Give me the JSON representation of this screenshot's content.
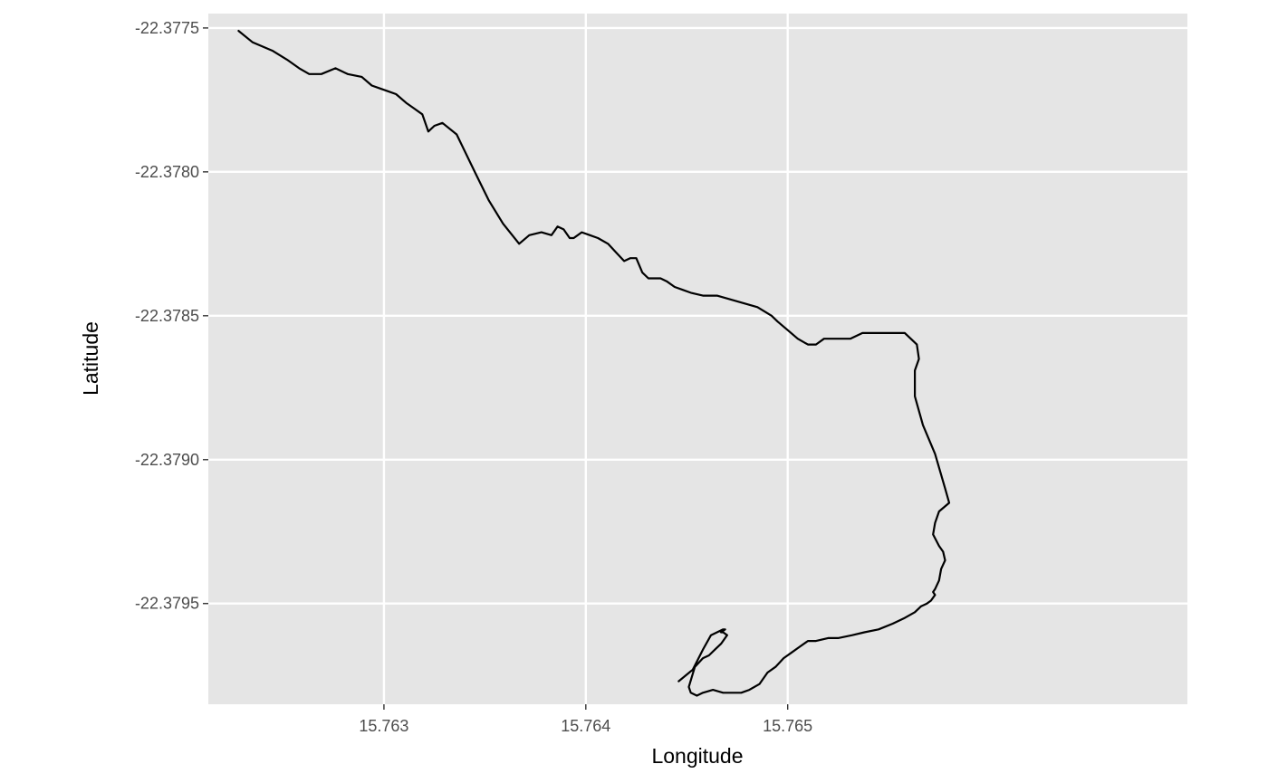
{
  "chart_data": {
    "type": "line",
    "title": "",
    "xlabel": "Longitude",
    "ylabel": "Latitude",
    "xlim": [
      15.76213,
      15.76698
    ],
    "ylim": [
      -22.37985,
      -22.37745
    ],
    "xticks": [
      {
        "value": 15.763,
        "label": "15.763"
      },
      {
        "value": 15.764,
        "label": "15.764"
      },
      {
        "value": 15.765,
        "label": "15.765"
      }
    ],
    "yticks": [
      {
        "value": -22.3775,
        "label": "-22.3775"
      },
      {
        "value": -22.378,
        "label": "-22.3780"
      },
      {
        "value": -22.3785,
        "label": "-22.3785"
      },
      {
        "value": -22.379,
        "label": "-22.3790"
      },
      {
        "value": -22.3795,
        "label": "-22.3795"
      }
    ],
    "grid": true,
    "legend": "none",
    "colors": {
      "panel": "#e5e5e5",
      "grid": "#ffffff",
      "line": "#000000"
    },
    "series": [
      {
        "x": [
          15.76228,
          15.76235,
          15.76245,
          15.76252,
          15.76258,
          15.76263,
          15.76269,
          15.76276,
          15.76282,
          15.76289,
          15.76294,
          15.76298,
          15.76302,
          15.76306,
          15.76311,
          15.76315,
          15.76319,
          15.76322,
          15.76325,
          15.76329,
          15.76336,
          15.76345,
          15.76352,
          15.76359,
          15.76367,
          15.76372,
          15.76378,
          15.76383,
          15.76386,
          15.76389,
          15.76392,
          15.76394,
          15.76398,
          15.76402,
          15.76406,
          15.76411,
          15.76415,
          15.76419,
          15.76422,
          15.76425,
          15.76428,
          15.76431,
          15.76434,
          15.76437,
          15.7644,
          15.76444,
          15.76448,
          15.76452,
          15.76458,
          15.76465,
          15.76475,
          15.76485,
          15.76492,
          15.76495,
          15.765,
          15.76505,
          15.7651,
          15.76514,
          15.76518,
          15.76522,
          15.76526,
          15.76531,
          15.76537,
          15.76545,
          15.76552,
          15.76558,
          15.76561,
          15.76564,
          15.76565,
          15.76563,
          15.76563,
          15.76567,
          15.76573,
          15.76578,
          15.7658,
          15.76575,
          15.76573,
          15.76572,
          15.76575,
          15.76577,
          15.76578,
          15.76576,
          15.76575,
          15.76573,
          15.76572,
          15.76573,
          15.76571,
          15.76569,
          15.76566,
          15.76563,
          15.76558,
          15.76552,
          15.76545,
          15.76538,
          15.76532,
          15.76525,
          15.7652,
          15.76514,
          15.7651,
          15.76506,
          15.76502,
          15.76498,
          15.76494,
          15.7649,
          15.76486,
          15.76481,
          15.76477,
          15.76473,
          15.76468,
          15.76463,
          15.76458,
          15.76455,
          15.76452,
          15.76452,
          15.76451,
          15.76454,
          15.76458,
          15.76461,
          15.76464,
          15.76467,
          15.7647,
          15.76468,
          15.76467,
          15.76469,
          15.76468,
          15.76462,
          15.76458,
          15.76453,
          15.76446
        ],
        "y": [
          -22.37751,
          -22.37755,
          -22.37758,
          -22.37761,
          -22.37764,
          -22.37766,
          -22.37766,
          -22.37764,
          -22.37766,
          -22.37767,
          -22.3777,
          -22.37771,
          -22.37772,
          -22.37773,
          -22.37776,
          -22.37778,
          -22.3778,
          -22.37786,
          -22.37784,
          -22.37783,
          -22.37787,
          -22.378,
          -22.3781,
          -22.37818,
          -22.37825,
          -22.37822,
          -22.37821,
          -22.37822,
          -22.37819,
          -22.3782,
          -22.37823,
          -22.37823,
          -22.37821,
          -22.37822,
          -22.37823,
          -22.37825,
          -22.37828,
          -22.37831,
          -22.3783,
          -22.3783,
          -22.37835,
          -22.37837,
          -22.37837,
          -22.37837,
          -22.37838,
          -22.3784,
          -22.37841,
          -22.37842,
          -22.37843,
          -22.37843,
          -22.37845,
          -22.37847,
          -22.3785,
          -22.37852,
          -22.37855,
          -22.37858,
          -22.3786,
          -22.3786,
          -22.37858,
          -22.37858,
          -22.37858,
          -22.37858,
          -22.37856,
          -22.37856,
          -22.37856,
          -22.37856,
          -22.37858,
          -22.3786,
          -22.37865,
          -22.37869,
          -22.37878,
          -22.37888,
          -22.37898,
          -22.3791,
          -22.37915,
          -22.37918,
          -22.37922,
          -22.37926,
          -22.3793,
          -22.37932,
          -22.37935,
          -22.37938,
          -22.37942,
          -22.37945,
          -22.37946,
          -22.37947,
          -22.37949,
          -22.3795,
          -22.37951,
          -22.37953,
          -22.37955,
          -22.37957,
          -22.37959,
          -22.3796,
          -22.37961,
          -22.37962,
          -22.37962,
          -22.37963,
          -22.37963,
          -22.37965,
          -22.37967,
          -22.37969,
          -22.37972,
          -22.37974,
          -22.37978,
          -22.3798,
          -22.37981,
          -22.37981,
          -22.37981,
          -22.3798,
          -22.37981,
          -22.37982,
          -22.37981,
          -22.37981,
          -22.37979,
          -22.37972,
          -22.37969,
          -22.37968,
          -22.37966,
          -22.37964,
          -22.37961,
          -22.3796,
          -22.3796,
          -22.37959,
          -22.37959,
          -22.37961,
          -22.37966,
          -22.37973,
          -22.37977
        ]
      }
    ]
  }
}
